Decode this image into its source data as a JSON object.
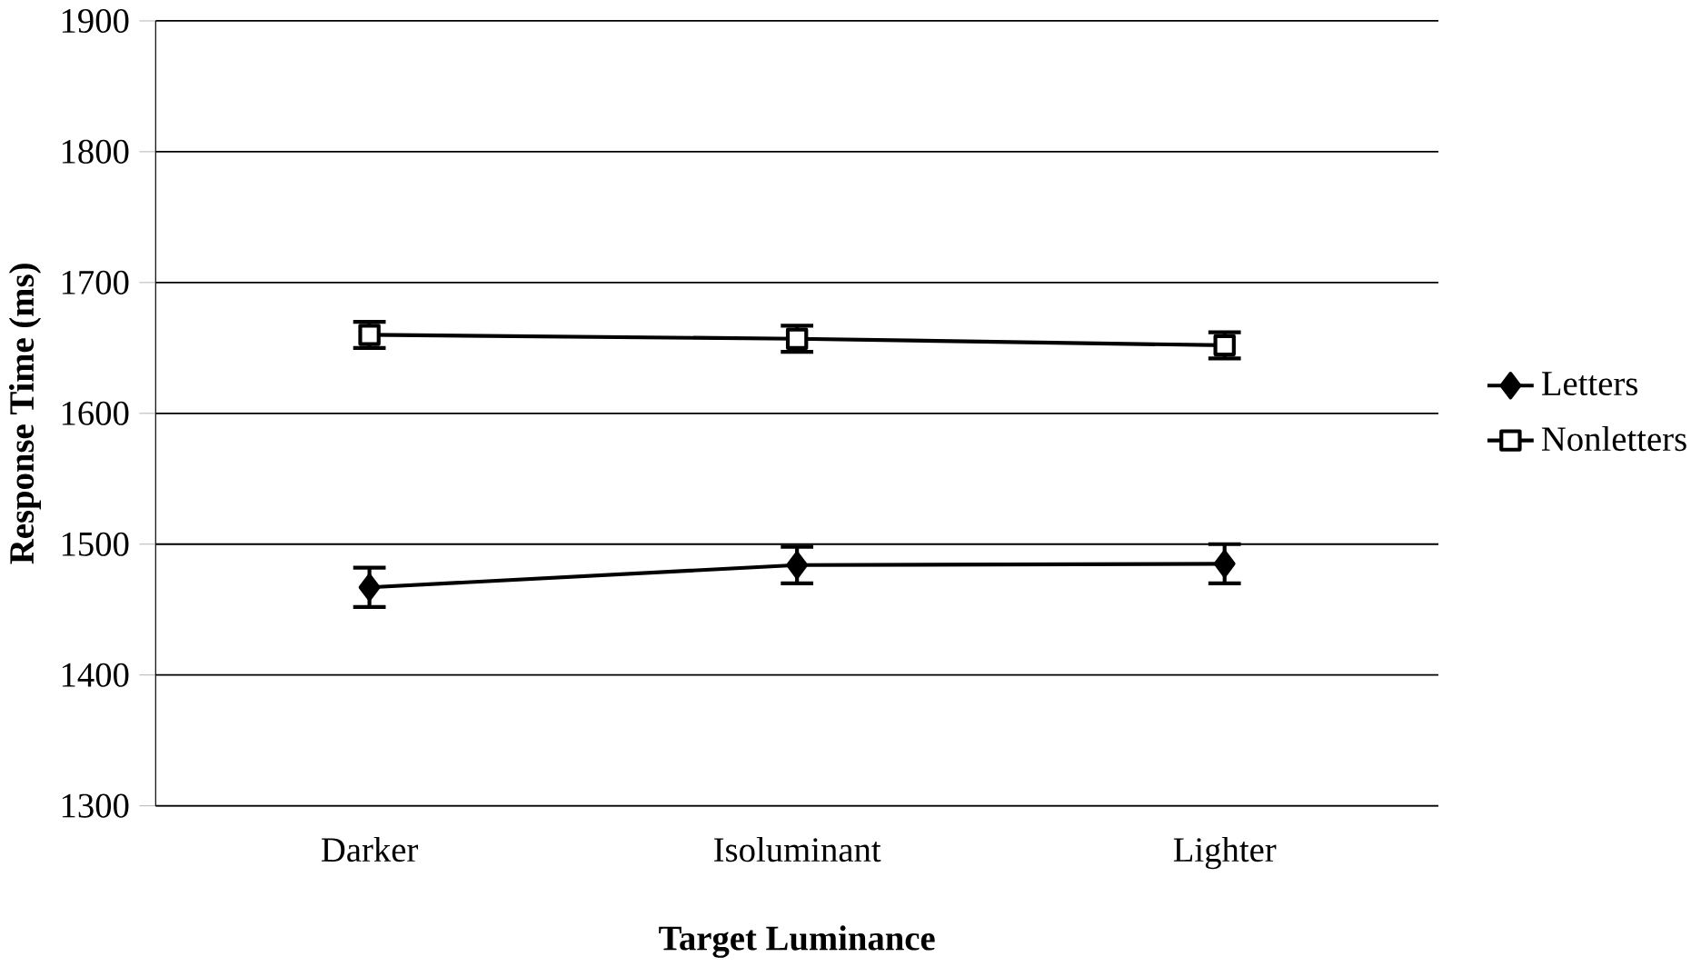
{
  "chart_data": {
    "type": "line",
    "xlabel": "Target Luminance",
    "ylabel": "Response Time (ms)",
    "categories": [
      "Darker",
      "Isoluminant",
      "Lighter"
    ],
    "series": [
      {
        "name": "Letters",
        "color": "#000000",
        "marker": "diamond",
        "values": [
          1467,
          1484,
          1485
        ],
        "errors": [
          15,
          14,
          15
        ]
      },
      {
        "name": "Nonletters",
        "color": "#000000",
        "marker": "square",
        "values": [
          1660,
          1657,
          1652
        ],
        "errors": [
          10,
          10,
          10
        ]
      }
    ],
    "ylim": [
      1300,
      1900
    ],
    "yticks": [
      1300,
      1400,
      1500,
      1600,
      1700,
      1800,
      1900
    ],
    "grid": "y",
    "legend": "right"
  }
}
